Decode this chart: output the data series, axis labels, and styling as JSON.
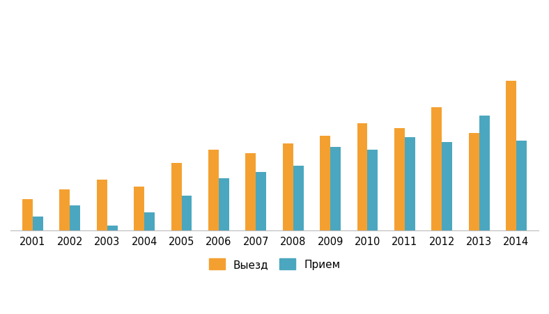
{
  "years": [
    "2001",
    "2002",
    "2003",
    "2004",
    "2005",
    "2006",
    "2007",
    "2008",
    "2009",
    "2010",
    "2011",
    "2012",
    "2013",
    "2014"
  ],
  "vyezd": [
    200,
    260,
    320,
    280,
    430,
    510,
    490,
    550,
    600,
    680,
    650,
    780,
    620,
    950
  ],
  "priem": [
    90,
    160,
    30,
    115,
    220,
    330,
    370,
    410,
    530,
    510,
    590,
    560,
    730,
    570
  ],
  "bar_color_vyezd": "#F4A030",
  "bar_color_priem": "#4BA7BF",
  "background_color": "#FFFFFF",
  "grid_color": "#D0D0D0",
  "legend_vyezd": "Выезд",
  "legend_priem": "Прием",
  "bar_width": 0.28,
  "ylim": [
    0,
    1400
  ],
  "title": ""
}
